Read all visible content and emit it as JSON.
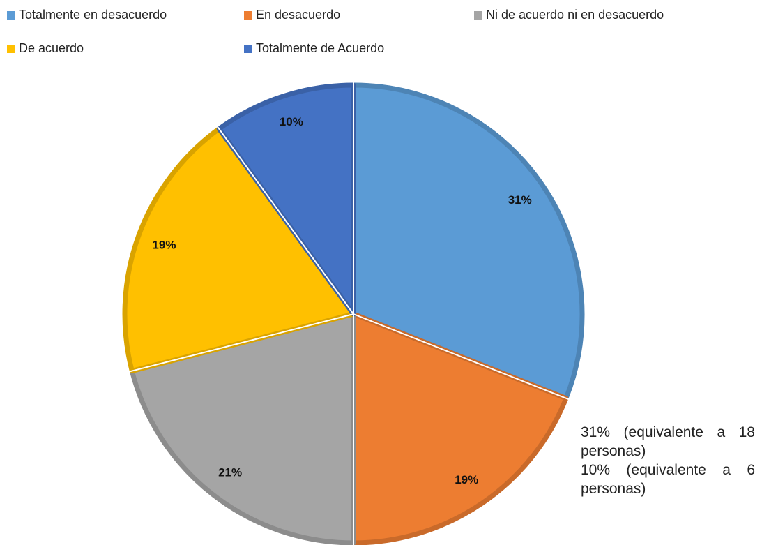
{
  "chart_data": {
    "type": "pie",
    "categories": [
      "Totalmente en desacuerdo",
      "En desacuerdo",
      "Ni de acuerdo ni en desacuerdo",
      "De acuerdo",
      "Totalmente de Acuerdo"
    ],
    "values": [
      31,
      19,
      21,
      19,
      10
    ],
    "value_labels": [
      "31%",
      "19%",
      "21%",
      "19%",
      "10%"
    ],
    "colors": [
      "#5b9bd5",
      "#ed7d31",
      "#a5a5a5",
      "#ffc000",
      "#4472c4"
    ],
    "annotations": [
      "31% (equivalente a 18 personas)",
      "10%  (equivalente  a 6 personas)"
    ]
  }
}
